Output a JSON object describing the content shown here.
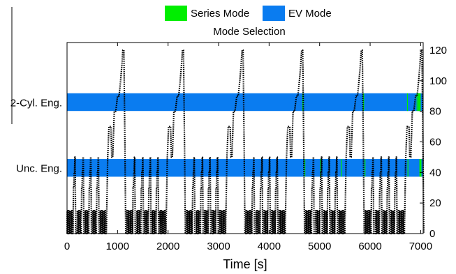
{
  "chart_data": {
    "type": "line",
    "legend": {
      "placement": "top-center",
      "entries": [
        {
          "label": "Series Mode",
          "color": "#00ee00"
        },
        {
          "label": "EV Mode",
          "color": "#0a7cf0"
        }
      ]
    },
    "subtitle": "Mode Selection",
    "xlabel": "Time [s]",
    "xlim": [
      0,
      7050
    ],
    "xticks": [
      0,
      1000,
      2000,
      3000,
      4000,
      5000,
      6000,
      7000
    ],
    "ylim_right": [
      0,
      125
    ],
    "yticks_right": [
      0,
      20,
      40,
      60,
      80,
      100,
      120
    ],
    "mode_tracks": [
      {
        "label": "2-Cyl. Eng.",
        "ymid": 86,
        "segments": [
          {
            "start": 0,
            "end": 7050,
            "mode": "EV Mode"
          },
          {
            "start": 4660,
            "end": 4680,
            "mode": "Series Mode"
          },
          {
            "start": 5860,
            "end": 5880,
            "mode": "Series Mode"
          },
          {
            "start": 6730,
            "end": 6745,
            "mode": "Series Mode"
          },
          {
            "start": 6920,
            "end": 6935,
            "mode": "Series Mode"
          },
          {
            "start": 6945,
            "end": 7000,
            "mode": "Series Mode"
          }
        ]
      },
      {
        "label": "Unc. Eng.",
        "ymid": 43,
        "segments": [
          {
            "start": 0,
            "end": 7050,
            "mode": "EV Mode"
          },
          {
            "start": 4700,
            "end": 4715,
            "mode": "Series Mode"
          },
          {
            "start": 5010,
            "end": 5020,
            "mode": "Series Mode"
          },
          {
            "start": 5420,
            "end": 5430,
            "mode": "Series Mode"
          },
          {
            "start": 5890,
            "end": 5905,
            "mode": "Series Mode"
          },
          {
            "start": 6740,
            "end": 6755,
            "mode": "Series Mode"
          },
          {
            "start": 6975,
            "end": 7015,
            "mode": "Series Mode"
          }
        ]
      }
    ],
    "speed_series": {
      "color": "#000000",
      "style": "dotted",
      "cycle_period": 1180,
      "cycle_count": 6,
      "cycle_points": [
        [
          0,
          0
        ],
        [
          3,
          15
        ],
        [
          10,
          15
        ],
        [
          13,
          0
        ],
        [
          20,
          0
        ],
        [
          23,
          15
        ],
        [
          30,
          15
        ],
        [
          33,
          0
        ],
        [
          40,
          0
        ],
        [
          43,
          15
        ],
        [
          50,
          15
        ],
        [
          53,
          0
        ],
        [
          60,
          0
        ],
        [
          63,
          15
        ],
        [
          70,
          15
        ],
        [
          73,
          0
        ],
        [
          80,
          0
        ],
        [
          83,
          15
        ],
        [
          90,
          15
        ],
        [
          93,
          0
        ],
        [
          100,
          0
        ],
        [
          103,
          15
        ],
        [
          110,
          15
        ],
        [
          113,
          0
        ],
        [
          118,
          0
        ],
        [
          128,
          30
        ],
        [
          135,
          30
        ],
        [
          140,
          40
        ],
        [
          148,
          40
        ],
        [
          155,
          50
        ],
        [
          160,
          50
        ],
        [
          165,
          30
        ],
        [
          170,
          0
        ],
        [
          200,
          0
        ],
        [
          203,
          15
        ],
        [
          210,
          15
        ],
        [
          213,
          0
        ],
        [
          220,
          0
        ],
        [
          223,
          15
        ],
        [
          230,
          15
        ],
        [
          233,
          0
        ],
        [
          240,
          0
        ],
        [
          243,
          15
        ],
        [
          250,
          15
        ],
        [
          253,
          0
        ],
        [
          260,
          0
        ],
        [
          263,
          15
        ],
        [
          270,
          15
        ],
        [
          273,
          0
        ],
        [
          280,
          0
        ],
        [
          290,
          30
        ],
        [
          297,
          30
        ],
        [
          302,
          40
        ],
        [
          310,
          40
        ],
        [
          317,
          50
        ],
        [
          322,
          50
        ],
        [
          327,
          30
        ],
        [
          333,
          0
        ],
        [
          355,
          0
        ],
        [
          358,
          15
        ],
        [
          365,
          15
        ],
        [
          368,
          0
        ],
        [
          375,
          0
        ],
        [
          378,
          15
        ],
        [
          385,
          15
        ],
        [
          388,
          0
        ],
        [
          395,
          0
        ],
        [
          398,
          15
        ],
        [
          405,
          15
        ],
        [
          408,
          0
        ],
        [
          415,
          0
        ],
        [
          418,
          15
        ],
        [
          425,
          15
        ],
        [
          428,
          0
        ],
        [
          430,
          0
        ],
        [
          440,
          30
        ],
        [
          447,
          30
        ],
        [
          452,
          40
        ],
        [
          460,
          40
        ],
        [
          467,
          50
        ],
        [
          472,
          50
        ],
        [
          477,
          30
        ],
        [
          483,
          0
        ],
        [
          505,
          0
        ],
        [
          508,
          15
        ],
        [
          515,
          15
        ],
        [
          518,
          0
        ],
        [
          525,
          0
        ],
        [
          528,
          15
        ],
        [
          535,
          15
        ],
        [
          538,
          0
        ],
        [
          545,
          0
        ],
        [
          548,
          15
        ],
        [
          555,
          15
        ],
        [
          558,
          0
        ],
        [
          565,
          0
        ],
        [
          568,
          15
        ],
        [
          575,
          15
        ],
        [
          578,
          0
        ],
        [
          580,
          0
        ],
        [
          590,
          30
        ],
        [
          597,
          30
        ],
        [
          602,
          40
        ],
        [
          610,
          40
        ],
        [
          617,
          50
        ],
        [
          622,
          50
        ],
        [
          627,
          30
        ],
        [
          633,
          0
        ],
        [
          655,
          0
        ],
        [
          658,
          15
        ],
        [
          665,
          15
        ],
        [
          668,
          0
        ],
        [
          675,
          0
        ],
        [
          678,
          15
        ],
        [
          685,
          15
        ],
        [
          688,
          0
        ],
        [
          695,
          0
        ],
        [
          698,
          15
        ],
        [
          705,
          15
        ],
        [
          708,
          0
        ],
        [
          715,
          0
        ],
        [
          718,
          15
        ],
        [
          725,
          15
        ],
        [
          728,
          0
        ],
        [
          735,
          0
        ],
        [
          738,
          15
        ],
        [
          745,
          15
        ],
        [
          748,
          0
        ],
        [
          755,
          0
        ],
        [
          758,
          15
        ],
        [
          765,
          15
        ],
        [
          768,
          0
        ],
        [
          778,
          0
        ],
        [
          805,
          50
        ],
        [
          830,
          70
        ],
        [
          870,
          70
        ],
        [
          885,
          50
        ],
        [
          905,
          50
        ],
        [
          935,
          80
        ],
        [
          965,
          80
        ],
        [
          1000,
          90
        ],
        [
          1030,
          90
        ],
        [
          1060,
          100
        ],
        [
          1085,
          110
        ],
        [
          1105,
          120
        ],
        [
          1125,
          120
        ],
        [
          1145,
          60
        ],
        [
          1162,
          0
        ]
      ]
    }
  }
}
